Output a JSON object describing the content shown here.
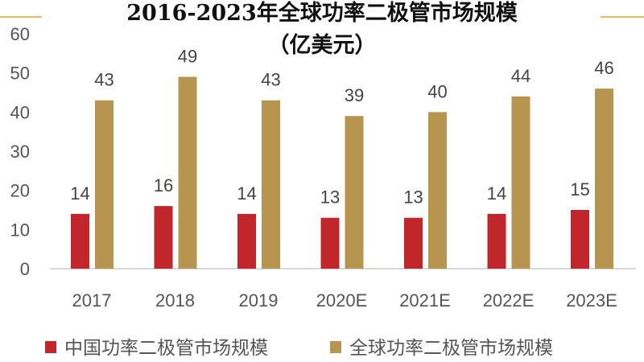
{
  "chart_data": {
    "type": "bar",
    "title": "2016-2023年全球功率二极管市场规模",
    "subtitle": "（亿美元）",
    "categories": [
      "2017",
      "2018",
      "2019",
      "2020E",
      "2021E",
      "2022E",
      "2023E"
    ],
    "series": [
      {
        "name": "中国功率二极管市场规模",
        "color": "#C0262A",
        "values": [
          14,
          16,
          14,
          13,
          13,
          14,
          15
        ]
      },
      {
        "name": "全球功率二极管市场规模",
        "color": "#B5954F",
        "values": [
          43,
          49,
          43,
          39,
          40,
          44,
          46
        ]
      }
    ],
    "ylim": [
      0,
      60
    ],
    "yticks": [
      0,
      10,
      20,
      30,
      40,
      50,
      60
    ],
    "xlabel": "",
    "ylabel": "",
    "grid": false,
    "legend": "bottom"
  }
}
